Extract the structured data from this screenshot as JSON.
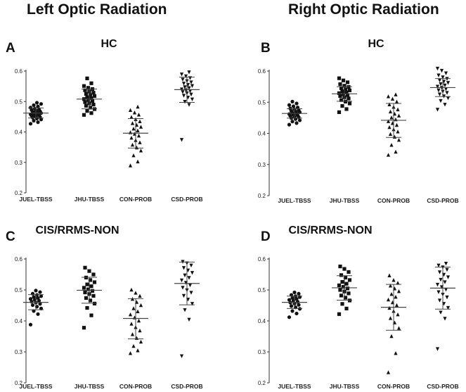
{
  "column_titles": {
    "left": "Left Optic Radiation",
    "right": "Right Optic Radiation"
  },
  "chart_data": [
    {
      "type": "scatter",
      "panel": "A",
      "title": "HC",
      "categories": [
        "JUEL-TBSS",
        "JHU-TBSS",
        "CON-PROB",
        "CSD-PROB"
      ],
      "markers": [
        "circle",
        "square",
        "triangle",
        "triangle-down"
      ],
      "ylim": [
        0.2,
        0.6
      ],
      "yticks": [
        "0.2",
        "0.3",
        "0.4",
        "0.5",
        "0.6"
      ],
      "mean": [
        0.462,
        0.508,
        0.396,
        0.539
      ],
      "sd_low": [
        0.446,
        0.476,
        0.347,
        0.497
      ],
      "sd_high": [
        0.479,
        0.541,
        0.444,
        0.58
      ],
      "points": [
        [
          0.427,
          0.432,
          0.437,
          0.441,
          0.444,
          0.447,
          0.449,
          0.451,
          0.453,
          0.455,
          0.456,
          0.458,
          0.46,
          0.461,
          0.462,
          0.464,
          0.466,
          0.468,
          0.47,
          0.472,
          0.474,
          0.477,
          0.48,
          0.484,
          0.488,
          0.492,
          0.496
        ],
        [
          0.456,
          0.462,
          0.469,
          0.475,
          0.48,
          0.486,
          0.49,
          0.494,
          0.498,
          0.502,
          0.505,
          0.508,
          0.511,
          0.514,
          0.518,
          0.521,
          0.525,
          0.529,
          0.533,
          0.537,
          0.541,
          0.545,
          0.551,
          0.56,
          0.576
        ],
        [
          0.289,
          0.302,
          0.322,
          0.338,
          0.348,
          0.357,
          0.365,
          0.372,
          0.38,
          0.387,
          0.393,
          0.398,
          0.404,
          0.41,
          0.416,
          0.422,
          0.428,
          0.434,
          0.441,
          0.448,
          0.456,
          0.463,
          0.471,
          0.482
        ],
        [
          0.375,
          0.49,
          0.5,
          0.508,
          0.514,
          0.52,
          0.524,
          0.528,
          0.532,
          0.535,
          0.538,
          0.541,
          0.545,
          0.548,
          0.552,
          0.556,
          0.56,
          0.564,
          0.568,
          0.573,
          0.578,
          0.584,
          0.59,
          0.597
        ]
      ]
    },
    {
      "type": "scatter",
      "panel": "B",
      "title": "HC",
      "categories": [
        "JUEL-TBSS",
        "JHU-TBSS",
        "CON-PROB",
        "CSD-PROB"
      ],
      "markers": [
        "circle",
        "square",
        "triangle",
        "triangle-down"
      ],
      "ylim": [
        0.2,
        0.6
      ],
      "yticks": [
        "0.2",
        "0.3",
        "0.4",
        "0.5",
        "0.6"
      ],
      "mean": [
        0.464,
        0.527,
        0.442,
        0.547
      ],
      "sd_low": [
        0.449,
        0.503,
        0.387,
        0.518
      ],
      "sd_high": [
        0.479,
        0.55,
        0.496,
        0.576
      ],
      "points": [
        [
          0.428,
          0.433,
          0.438,
          0.442,
          0.446,
          0.449,
          0.452,
          0.454,
          0.456,
          0.458,
          0.46,
          0.462,
          0.464,
          0.466,
          0.468,
          0.47,
          0.472,
          0.474,
          0.477,
          0.48,
          0.483,
          0.487,
          0.491,
          0.496,
          0.502
        ],
        [
          0.468,
          0.478,
          0.488,
          0.496,
          0.502,
          0.507,
          0.512,
          0.516,
          0.52,
          0.523,
          0.526,
          0.529,
          0.532,
          0.535,
          0.538,
          0.541,
          0.545,
          0.549,
          0.553,
          0.558,
          0.564,
          0.57,
          0.577
        ],
        [
          0.33,
          0.34,
          0.362,
          0.378,
          0.388,
          0.397,
          0.405,
          0.412,
          0.419,
          0.426,
          0.432,
          0.438,
          0.444,
          0.45,
          0.456,
          0.462,
          0.469,
          0.476,
          0.484,
          0.492,
          0.501,
          0.51,
          0.518,
          0.524
        ],
        [
          0.477,
          0.493,
          0.505,
          0.514,
          0.52,
          0.526,
          0.531,
          0.535,
          0.539,
          0.543,
          0.547,
          0.551,
          0.555,
          0.559,
          0.563,
          0.567,
          0.571,
          0.576,
          0.581,
          0.587,
          0.594,
          0.602,
          0.609
        ]
      ]
    },
    {
      "type": "scatter",
      "panel": "C",
      "title": "CIS/RRMS-NON",
      "categories": [
        "JUEL-TBSS",
        "JHU-TBSS",
        "CON-PROB",
        "CSD-PROB"
      ],
      "markers": [
        "circle",
        "square",
        "triangle",
        "triangle-down"
      ],
      "ylim": [
        0.2,
        0.6
      ],
      "yticks": [
        "0.2",
        "0.3",
        "0.4",
        "0.5",
        "0.6"
      ],
      "mean": [
        0.46,
        0.499,
        0.408,
        0.521
      ],
      "sd_low": [
        0.436,
        0.457,
        0.342,
        0.452
      ],
      "sd_high": [
        0.485,
        0.541,
        0.472,
        0.59
      ],
      "points": [
        [
          0.388,
          0.422,
          0.432,
          0.44,
          0.446,
          0.451,
          0.455,
          0.459,
          0.462,
          0.465,
          0.468,
          0.471,
          0.474,
          0.477,
          0.48,
          0.484,
          0.488,
          0.493,
          0.498
        ],
        [
          0.378,
          0.418,
          0.442,
          0.456,
          0.466,
          0.474,
          0.481,
          0.487,
          0.492,
          0.497,
          0.502,
          0.507,
          0.512,
          0.518,
          0.525,
          0.532,
          0.54,
          0.55,
          0.561,
          0.572
        ],
        [
          0.295,
          0.304,
          0.318,
          0.332,
          0.344,
          0.356,
          0.368,
          0.379,
          0.39,
          0.4,
          0.41,
          0.42,
          0.43,
          0.44,
          0.45,
          0.46,
          0.47,
          0.48,
          0.49,
          0.5
        ],
        [
          0.287,
          0.405,
          0.436,
          0.456,
          0.47,
          0.482,
          0.492,
          0.5,
          0.508,
          0.516,
          0.524,
          0.532,
          0.54,
          0.548,
          0.556,
          0.564,
          0.572,
          0.58,
          0.587,
          0.592
        ]
      ]
    },
    {
      "type": "scatter",
      "panel": "D",
      "title": "CIS/RRMS-NON",
      "categories": [
        "JUEL-TBSS",
        "JHU-TBSS",
        "CON-PROB",
        "CSD-PROB"
      ],
      "markers": [
        "circle",
        "square",
        "triangle",
        "triangle-down"
      ],
      "ylim": [
        0.2,
        0.6
      ],
      "yticks": [
        "0.2",
        "0.3",
        "0.4",
        "0.5",
        "0.6"
      ],
      "mean": [
        0.46,
        0.507,
        0.444,
        0.506
      ],
      "sd_low": [
        0.44,
        0.467,
        0.37,
        0.438
      ],
      "sd_high": [
        0.48,
        0.546,
        0.518,
        0.574
      ],
      "points": [
        [
          0.412,
          0.424,
          0.432,
          0.439,
          0.444,
          0.448,
          0.452,
          0.456,
          0.459,
          0.462,
          0.465,
          0.468,
          0.471,
          0.474,
          0.477,
          0.48,
          0.484,
          0.488,
          0.492
        ],
        [
          0.422,
          0.44,
          0.455,
          0.466,
          0.475,
          0.482,
          0.489,
          0.495,
          0.5,
          0.505,
          0.51,
          0.515,
          0.52,
          0.526,
          0.532,
          0.54,
          0.548,
          0.558,
          0.568,
          0.576
        ],
        [
          0.233,
          0.295,
          0.35,
          0.376,
          0.394,
          0.408,
          0.42,
          0.431,
          0.441,
          0.45,
          0.459,
          0.468,
          0.477,
          0.486,
          0.495,
          0.504,
          0.513,
          0.522,
          0.531,
          0.546
        ],
        [
          0.31,
          0.408,
          0.428,
          0.443,
          0.456,
          0.467,
          0.477,
          0.486,
          0.494,
          0.502,
          0.51,
          0.518,
          0.526,
          0.534,
          0.542,
          0.55,
          0.558,
          0.566,
          0.574,
          0.58,
          0.586
        ]
      ]
    }
  ]
}
